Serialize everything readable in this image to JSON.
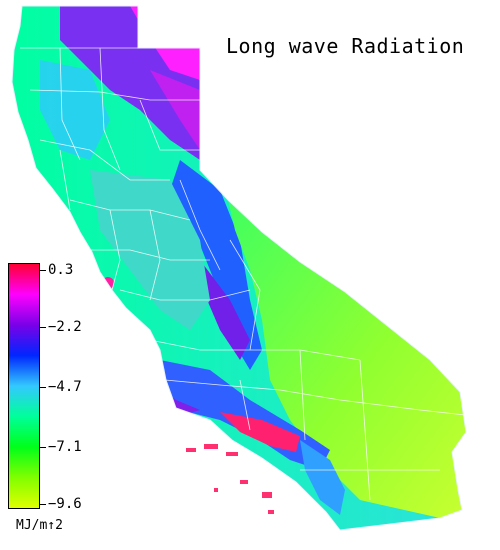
{
  "title": "Long wave Radiation",
  "legend": {
    "tick_labels": [
      "0.3",
      "−2.2",
      "−4.7",
      "−7.1",
      "−9.6"
    ],
    "unit": "MJ/m↑2",
    "colors": [
      "#ff0033",
      "#ff00ff",
      "#7a00e8",
      "#0026ff",
      "#33c8ff",
      "#00ff9a",
      "#00ff1a",
      "#80ff00",
      "#e0ff00"
    ]
  },
  "region_colors": {
    "north_mountains": "#a020f0",
    "far_north": "#ff00ff",
    "coast": "#00e8c0",
    "central_valley": "#33d8c8",
    "sierra": "#3070ff",
    "desert": "#80ff40",
    "far_desert": "#c0ff30",
    "socal_coast": "#ff3070"
  }
}
